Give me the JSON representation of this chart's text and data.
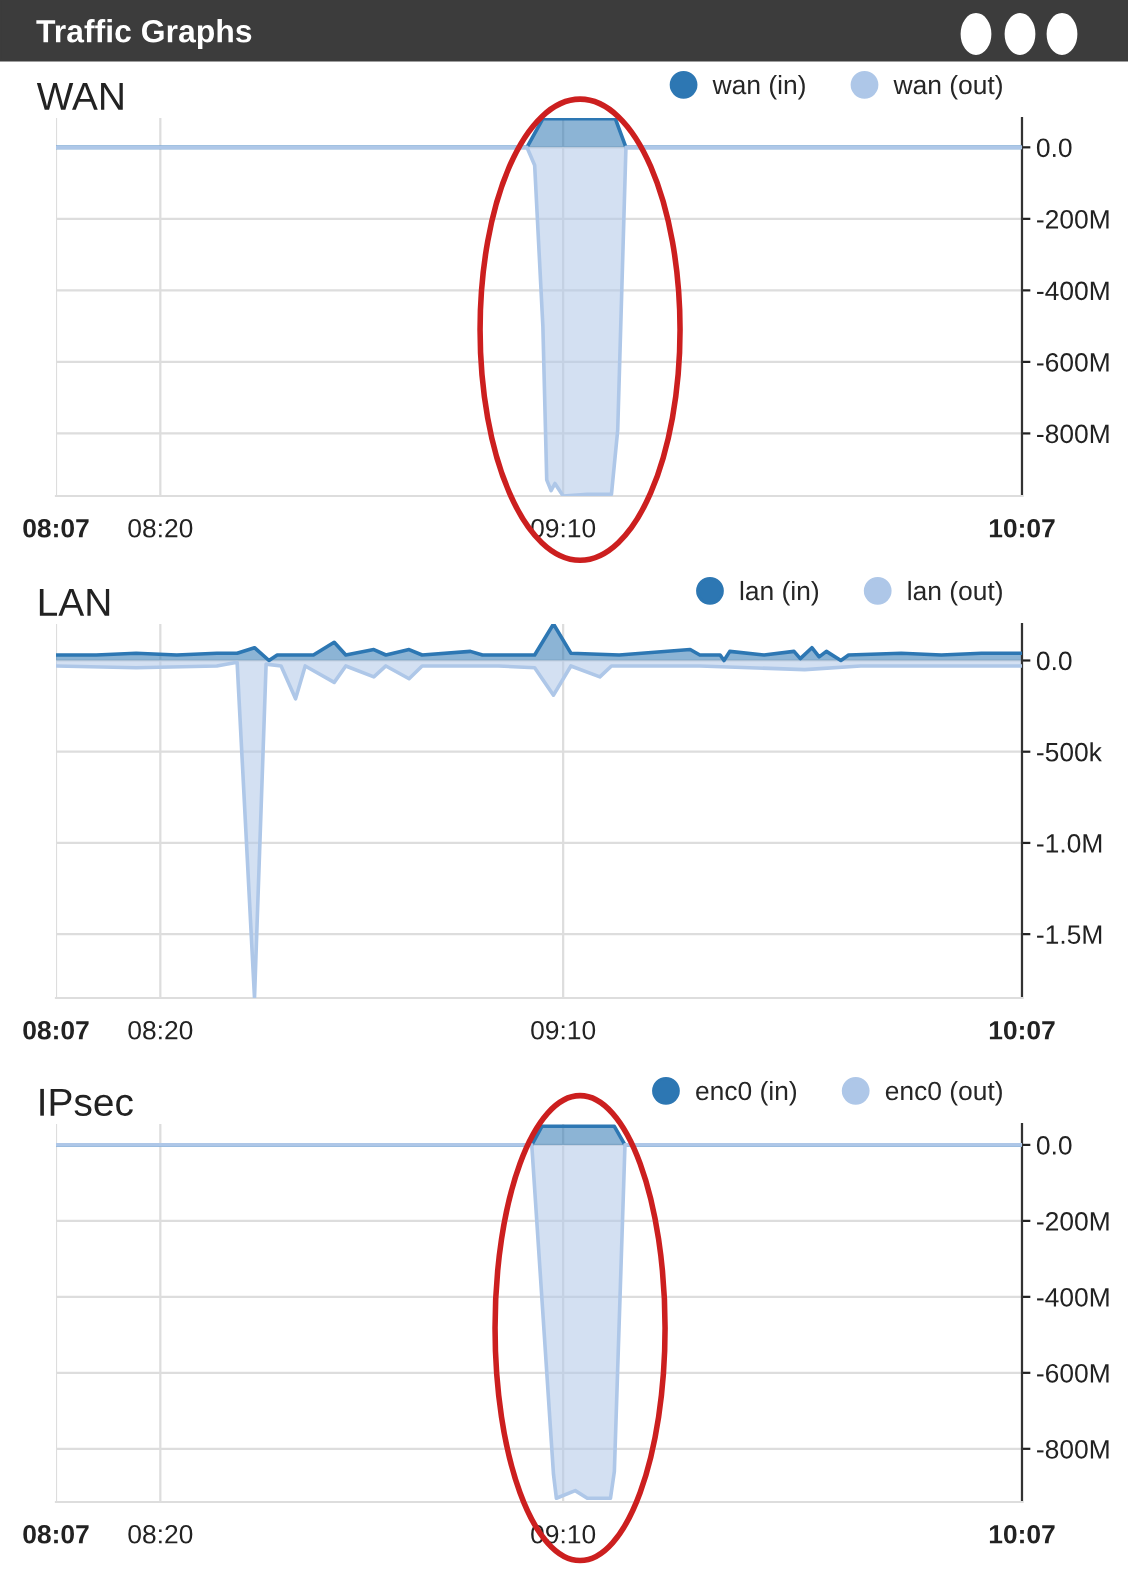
{
  "chart_data": [
    {
      "type": "area",
      "title": "WAN",
      "annotations": [
        "Traffic Graphs"
      ],
      "legend": "top right",
      "grid": true,
      "xlim": [
        8.117,
        10.117
      ],
      "xticks": [
        {
          "value": 8.117,
          "label": "08:07"
        },
        {
          "value": 8.333,
          "label": "08:20"
        },
        {
          "value": 9.167,
          "label": "09:10"
        },
        {
          "value": 10.117,
          "label": "10:07"
        }
      ],
      "ylim": [
        -975,
        82
      ],
      "yticks": [
        {
          "value": 0,
          "label": "0.0"
        },
        {
          "value": -200,
          "label": "-200M"
        },
        {
          "value": -400,
          "label": "-400M"
        },
        {
          "value": -600,
          "label": "-600M"
        },
        {
          "value": -800,
          "label": "-800M"
        }
      ],
      "series": [
        {
          "name": "wan (in)",
          "color": "#2d77b3",
          "x": [
            8.117,
            9.092,
            9.125,
            9.275,
            9.297,
            10.117
          ],
          "values": [
            0,
            0,
            80,
            80,
            0,
            0
          ]
        },
        {
          "name": "wan (out)",
          "color": "#aec7e8",
          "x": [
            8.117,
            9.092,
            9.108,
            9.125,
            9.133,
            9.142,
            9.15,
            9.167,
            9.217,
            9.267,
            9.28,
            9.297,
            10.117
          ],
          "values": [
            0,
            0,
            -50,
            -500,
            -930,
            -960,
            -940,
            -975,
            -970,
            -970,
            -790,
            0,
            0
          ]
        }
      ]
    },
    {
      "type": "area",
      "title": "LAN",
      "legend": "top right",
      "grid": true,
      "xlim": [
        8.117,
        10.117
      ],
      "xticks": [
        {
          "value": 8.117,
          "label": "08:07"
        },
        {
          "value": 8.333,
          "label": "08:20"
        },
        {
          "value": 9.167,
          "label": "09:10"
        },
        {
          "value": 10.117,
          "label": "10:07"
        }
      ],
      "ylim": [
        -1850000,
        200000
      ],
      "yticks": [
        {
          "value": 0,
          "label": "0.0"
        },
        {
          "value": -500000,
          "label": "-500k"
        },
        {
          "value": -1000000,
          "label": "-1.0M"
        },
        {
          "value": -1500000,
          "label": "-1.5M"
        }
      ],
      "series": [
        {
          "name": "lan (in)",
          "color": "#2d77b3",
          "x": [
            8.117,
            8.2,
            8.283,
            8.367,
            8.45,
            8.492,
            8.528,
            8.558,
            8.575,
            8.65,
            8.693,
            8.717,
            8.775,
            8.8,
            8.848,
            8.875,
            8.975,
            9.0,
            9.108,
            9.147,
            9.183,
            9.283,
            9.43,
            9.45,
            9.492,
            9.5,
            9.512,
            9.583,
            9.645,
            9.658,
            9.682,
            9.697,
            9.712,
            9.742,
            9.758,
            9.867,
            9.95,
            10.033,
            10.117
          ],
          "values": [
            30000,
            30000,
            40000,
            30000,
            40000,
            40000,
            70000,
            0,
            30000,
            30000,
            100000,
            30000,
            60000,
            30000,
            60000,
            30000,
            50000,
            30000,
            30000,
            200000,
            40000,
            30000,
            60000,
            30000,
            30000,
            0,
            50000,
            30000,
            50000,
            10000,
            70000,
            20000,
            50000,
            0,
            30000,
            40000,
            30000,
            40000,
            40000
          ]
        },
        {
          "name": "lan (out)",
          "color": "#aec7e8",
          "x": [
            8.117,
            8.283,
            8.45,
            8.492,
            8.528,
            8.552,
            8.583,
            8.613,
            8.633,
            8.693,
            8.717,
            8.775,
            8.8,
            8.848,
            8.875,
            9.033,
            9.108,
            9.147,
            9.183,
            9.243,
            9.267,
            9.45,
            9.667,
            9.783,
            9.95,
            10.117
          ],
          "values": [
            -30000,
            -40000,
            -30000,
            -10000,
            -1850000,
            -20000,
            -30000,
            -210000,
            -30000,
            -120000,
            -30000,
            -90000,
            -30000,
            -100000,
            -30000,
            -30000,
            -40000,
            -190000,
            -30000,
            -90000,
            -30000,
            -30000,
            -50000,
            -30000,
            -30000,
            -30000
          ]
        }
      ]
    },
    {
      "type": "area",
      "title": "IPsec",
      "legend": "top right",
      "grid": true,
      "xlim": [
        8.117,
        10.117
      ],
      "xticks": [
        {
          "value": 8.117,
          "label": "08:07"
        },
        {
          "value": 8.333,
          "label": "08:20"
        },
        {
          "value": 9.167,
          "label": "09:10"
        },
        {
          "value": 10.117,
          "label": "10:07"
        }
      ],
      "ylim": [
        -940,
        55
      ],
      "yticks": [
        {
          "value": 0,
          "label": "0.0"
        },
        {
          "value": -200,
          "label": "-200M"
        },
        {
          "value": -400,
          "label": "-400M"
        },
        {
          "value": -600,
          "label": "-600M"
        },
        {
          "value": -800,
          "label": "-800M"
        }
      ],
      "series": [
        {
          "name": "enc0 (in)",
          "color": "#2d77b3",
          "x": [
            8.117,
            9.102,
            9.123,
            9.273,
            9.295,
            10.117
          ],
          "values": [
            0,
            0,
            49,
            49,
            0,
            0
          ]
        },
        {
          "name": "enc0 (out)",
          "color": "#aec7e8",
          "x": [
            8.117,
            9.102,
            9.147,
            9.153,
            9.192,
            9.217,
            9.265,
            9.273,
            9.295,
            10.117
          ],
          "values": [
            0,
            0,
            -867,
            -930,
            -910,
            -930,
            -930,
            -860,
            0,
            0
          ]
        }
      ]
    }
  ]
}
